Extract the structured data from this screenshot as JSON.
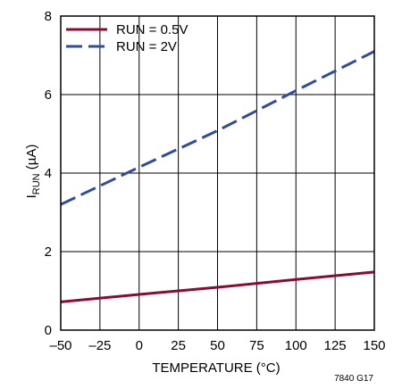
{
  "chart_data": {
    "type": "line",
    "xlabel": "TEMPERATURE (°C)",
    "ylabel_main": "I",
    "ylabel_sub": "RUN",
    "ylabel_unit": " (µA)",
    "xlim": [
      -50,
      150
    ],
    "ylim": [
      0,
      8
    ],
    "xticks": [
      -50,
      -25,
      0,
      25,
      50,
      75,
      100,
      125,
      150
    ],
    "xtick_labels": [
      "–50",
      "–25",
      "0",
      "25",
      "50",
      "75",
      "100",
      "125",
      "150"
    ],
    "yticks": [
      0,
      2,
      4,
      6,
      8
    ],
    "ytick_labels": [
      "0",
      "2",
      "4",
      "6",
      "8"
    ],
    "grid": true,
    "legend_position": "top-left",
    "series": [
      {
        "name": "RUN = 0.5V",
        "color": "#8b0a32",
        "dash": "solid",
        "x": [
          -50,
          0,
          50,
          100,
          150
        ],
        "y": [
          0.72,
          0.91,
          1.09,
          1.29,
          1.48
        ]
      },
      {
        "name": "RUN = 2V",
        "color": "#2e4c9b",
        "dash": "dashed",
        "x": [
          -50,
          0,
          50,
          100,
          150
        ],
        "y": [
          3.2,
          4.15,
          5.08,
          6.1,
          7.1
        ]
      }
    ],
    "annotation": "7840 G17"
  }
}
